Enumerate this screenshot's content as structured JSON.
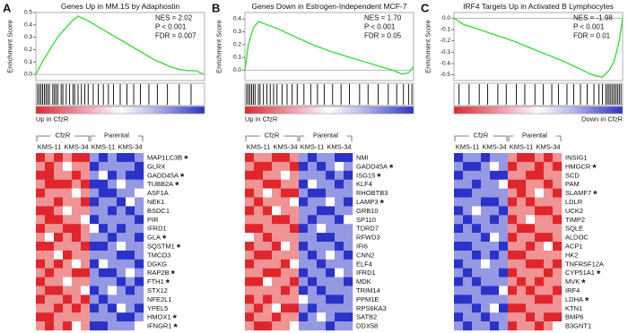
{
  "chart_data": [
    {
      "type": "gsea",
      "panel": "A",
      "title": "Genes Up in MM.1S by Adaphostin",
      "ylabel": "Enrichment Score",
      "annotations": [
        "NES = 2.02",
        "P < 0.001",
        "FDR = 0.007"
      ],
      "xlim": [
        0,
        100
      ],
      "ylim": [
        -0.05,
        0.5
      ],
      "yticks": [
        {
          "value": 0,
          "label": "0.0"
        },
        0.1,
        0.2,
        0.3,
        0.4,
        0.5
      ],
      "x": [
        0,
        3,
        6,
        10,
        14,
        18,
        22,
        25,
        30,
        35,
        40,
        45,
        50,
        55,
        60,
        65,
        70,
        75,
        80,
        85,
        90,
        95,
        98,
        100
      ],
      "values": [
        0,
        0.08,
        0.15,
        0.24,
        0.32,
        0.38,
        0.44,
        0.47,
        0.44,
        0.4,
        0.36,
        0.32,
        0.28,
        0.24,
        0.2,
        0.16,
        0.12,
        0.09,
        0.06,
        0.04,
        0.03,
        0.03,
        0.01,
        0
      ],
      "color": "#3ddc3d",
      "hits": [
        1,
        2,
        3,
        4,
        5,
        6,
        7,
        8,
        10,
        11,
        12,
        13,
        15,
        16,
        18,
        20,
        22,
        23,
        25,
        27,
        29,
        31,
        34,
        37,
        40,
        43,
        46,
        50,
        54,
        58,
        62,
        67,
        72,
        78,
        85,
        92
      ],
      "xlabel": "Up in CfzR",
      "xlabel_side": "left",
      "groups": [
        "CfzR",
        "Parental"
      ],
      "subgroups": [
        "KMS-11",
        "KMS-34",
        "KMS-11",
        "KMS-34"
      ],
      "zlim": [
        -2,
        2
      ],
      "colorscale": [
        "#2a32c8",
        "#ffffff",
        "#e0262a"
      ],
      "genes": [
        "MAP1LC3B",
        "GLRX",
        "GADD45A",
        "TUBB2A",
        "ASF1A",
        "NEK1",
        "BSDC1",
        "PIR",
        "IFRD1",
        "GLA",
        "SQSTM1",
        "TMCO3",
        "DGKG",
        "RAP2B",
        "FTH1",
        "STX12",
        "NFE2L1",
        "YPEL5",
        "HMOX1",
        "IFNGR1"
      ],
      "star": "*",
      "star_color": "#e0443c",
      "starred": [
        0,
        2,
        3,
        9,
        10,
        13,
        14,
        18,
        19
      ],
      "highlighted_genes": [],
      "highlight_color": "#2db82d",
      "matrix": [
        [
          2,
          1,
          2,
          1,
          2,
          2,
          -1,
          -2,
          -1,
          -2,
          -2,
          -1
        ],
        [
          1,
          2,
          1,
          0,
          1,
          1,
          -2,
          -1,
          -1,
          -1,
          -1,
          -2
        ],
        [
          2,
          2,
          1,
          1,
          2,
          1,
          -1,
          0,
          -2,
          -1,
          -2,
          -2
        ],
        [
          1,
          2,
          2,
          2,
          1,
          2,
          -2,
          -2,
          -1,
          0,
          -1,
          -1
        ],
        [
          2,
          1,
          1,
          1,
          0,
          1,
          -1,
          -2,
          -2,
          -1,
          -1,
          0
        ],
        [
          1,
          1,
          2,
          1,
          1,
          2,
          -2,
          -1,
          -1,
          -2,
          0,
          -1
        ],
        [
          2,
          2,
          1,
          0,
          1,
          1,
          -1,
          -1,
          -2,
          -1,
          -2,
          -1
        ],
        [
          1,
          2,
          2,
          1,
          1,
          0,
          -2,
          -1,
          -1,
          -1,
          -1,
          -2
        ],
        [
          2,
          1,
          1,
          2,
          2,
          1,
          0,
          -2,
          -1,
          -2,
          -1,
          -1
        ],
        [
          1,
          0,
          2,
          1,
          2,
          1,
          -1,
          -1,
          -2,
          -1,
          -1,
          -2
        ],
        [
          2,
          2,
          1,
          1,
          1,
          2,
          -2,
          -2,
          -1,
          0,
          -1,
          -1
        ],
        [
          1,
          1,
          0,
          2,
          1,
          1,
          -1,
          -1,
          -1,
          -2,
          -2,
          -1
        ],
        [
          2,
          1,
          2,
          1,
          0,
          1,
          -2,
          0,
          -1,
          -1,
          -1,
          -2
        ],
        [
          1,
          2,
          1,
          1,
          2,
          2,
          -1,
          -2,
          -2,
          -1,
          0,
          -1
        ],
        [
          2,
          1,
          1,
          0,
          1,
          1,
          -1,
          -1,
          -1,
          -2,
          -1,
          -2
        ],
        [
          1,
          2,
          2,
          1,
          1,
          0,
          -2,
          -1,
          0,
          -1,
          -2,
          -1
        ],
        [
          2,
          1,
          1,
          2,
          1,
          2,
          -1,
          -2,
          -1,
          -1,
          -1,
          -1
        ],
        [
          1,
          1,
          2,
          1,
          2,
          1,
          -2,
          -1,
          -2,
          0,
          -1,
          -2
        ],
        [
          2,
          2,
          1,
          1,
          1,
          1,
          -1,
          -1,
          -1,
          -2,
          -2,
          -1
        ],
        [
          1,
          2,
          1,
          2,
          0,
          1,
          -2,
          -2,
          -1,
          -1,
          -1,
          0
        ]
      ]
    },
    {
      "type": "gsea",
      "panel": "B",
      "title": "Genes Down in Estrogen-Independent MCF-7",
      "ylabel": "Enrichment Score",
      "annotations": [
        "NES = 1.70",
        "P < 0.001",
        "FDR = 0.05"
      ],
      "xlim": [
        0,
        100
      ],
      "ylim": [
        -0.08,
        0.45
      ],
      "yticks": [
        {
          "value": 0,
          "label": "0.0"
        },
        0.1,
        0.2,
        0.3,
        0.4
      ],
      "x": [
        0,
        2,
        5,
        8,
        12,
        20,
        30,
        40,
        50,
        60,
        70,
        80,
        88,
        93,
        97,
        100
      ],
      "values": [
        0,
        0.2,
        0.33,
        0.38,
        0.36,
        0.32,
        0.26,
        0.2,
        0.15,
        0.11,
        0.07,
        0.03,
        0,
        -0.03,
        -0.02,
        0.03
      ],
      "color": "#3ddc3d",
      "hits": [
        1,
        2,
        3,
        4,
        5,
        6,
        8,
        9,
        11,
        13,
        15,
        17,
        19,
        22,
        25,
        28,
        31,
        35,
        39,
        43,
        47,
        52,
        57,
        62,
        68,
        73,
        79,
        85,
        90,
        94,
        97,
        99
      ],
      "xlabel": "Up in CfzR",
      "xlabel_side": "left",
      "groups": [
        "CfzR",
        "Parental"
      ],
      "subgroups": [
        "KMS-11",
        "KMS-34",
        "KMS-11",
        "KMS-34"
      ],
      "zlim": [
        -2,
        2
      ],
      "colorscale": [
        "#2a32c8",
        "#ffffff",
        "#e0262a"
      ],
      "genes": [
        "NMI",
        "GADD45A",
        "ISG15",
        "KLF4",
        "RHOBTB3",
        "LAMP3",
        "GRB10",
        "SP110",
        "TDRD7",
        "RFWD3",
        "IFI6",
        "CNN2",
        "ELF4",
        "IFRD1",
        "MDK",
        "TRIM14",
        "PPM1E",
        "RPS6KA3",
        "SATB2",
        "DDX58"
      ],
      "star": "*",
      "star_color": "#e0443c",
      "starred": [
        1,
        2,
        5
      ],
      "highlighted_genes": [
        3
      ],
      "highlight_color": "#2db82d",
      "matrix": [
        [
          2,
          1,
          1,
          2,
          2,
          1,
          -1,
          -2,
          -1,
          -1,
          -2,
          -2
        ],
        [
          1,
          2,
          2,
          1,
          1,
          2,
          -2,
          -1,
          -2,
          -1,
          0,
          -1
        ],
        [
          2,
          2,
          1,
          1,
          0,
          1,
          -1,
          -1,
          -1,
          -2,
          -1,
          -2
        ],
        [
          1,
          1,
          2,
          2,
          1,
          1,
          -2,
          0,
          -1,
          -1,
          -2,
          -1
        ],
        [
          2,
          1,
          0,
          1,
          2,
          2,
          -1,
          -2,
          -2,
          -1,
          -1,
          -1
        ],
        [
          1,
          2,
          1,
          1,
          1,
          0,
          -2,
          -1,
          -1,
          0,
          -1,
          -2
        ],
        [
          2,
          1,
          2,
          0,
          1,
          1,
          -1,
          -1,
          -2,
          -2,
          -1,
          -1
        ],
        [
          1,
          1,
          1,
          2,
          2,
          1,
          -1,
          -2,
          -1,
          -1,
          -2,
          0
        ],
        [
          2,
          2,
          1,
          1,
          1,
          2,
          -2,
          -1,
          0,
          -1,
          -1,
          -1
        ],
        [
          0,
          1,
          2,
          1,
          1,
          1,
          -1,
          -1,
          -2,
          -2,
          -1,
          -1
        ],
        [
          2,
          1,
          1,
          2,
          0,
          1,
          -2,
          -1,
          -1,
          -1,
          -2,
          -1
        ],
        [
          1,
          2,
          2,
          1,
          1,
          1,
          -1,
          -2,
          -1,
          0,
          -1,
          -2
        ],
        [
          2,
          1,
          1,
          1,
          2,
          0,
          -1,
          -1,
          -2,
          -1,
          -1,
          -1
        ],
        [
          1,
          1,
          2,
          2,
          1,
          1,
          -2,
          -1,
          -1,
          -2,
          0,
          -1
        ],
        [
          2,
          2,
          0,
          1,
          1,
          2,
          -1,
          -2,
          -1,
          -1,
          -1,
          -2
        ],
        [
          1,
          1,
          1,
          1,
          2,
          1,
          -2,
          -1,
          -2,
          -1,
          -1,
          -1
        ],
        [
          2,
          1,
          2,
          1,
          1,
          1,
          0,
          -1,
          -1,
          -2,
          -2,
          -1
        ],
        [
          1,
          2,
          1,
          0,
          2,
          2,
          -1,
          -2,
          -1,
          -1,
          -1,
          -1
        ],
        [
          2,
          1,
          1,
          2,
          1,
          1,
          -2,
          -1,
          0,
          -1,
          -2,
          -2
        ],
        [
          1,
          2,
          2,
          1,
          1,
          0,
          -1,
          -1,
          -1,
          -2,
          -1,
          -1
        ]
      ]
    },
    {
      "type": "gsea",
      "panel": "C",
      "title": "IRF4 Targets Up in Activated B Lymphocytes",
      "ylabel": "Enrichment Score",
      "annotations": [
        "NES = -1.98",
        "P < 0.001",
        "FDR = 0.01"
      ],
      "xlim": [
        0,
        100
      ],
      "ylim": [
        -0.55,
        0.05
      ],
      "yticks": [
        {
          "value": 0,
          "label": "0.0"
        },
        -0.1,
        -0.2,
        -0.3,
        -0.4,
        -0.5
      ],
      "x": [
        0,
        5,
        15,
        25,
        35,
        45,
        55,
        65,
        75,
        82,
        88,
        92,
        95,
        98,
        100
      ],
      "values": [
        0,
        -0.05,
        -0.1,
        -0.15,
        -0.2,
        -0.26,
        -0.32,
        -0.38,
        -0.45,
        -0.5,
        -0.52,
        -0.46,
        -0.38,
        -0.2,
        0
      ],
      "color": "#3ddc3d",
      "hits": [
        3,
        9,
        15,
        20,
        26,
        31,
        37,
        42,
        48,
        53,
        58,
        62,
        67,
        71,
        75,
        79,
        83,
        86,
        88,
        90,
        91,
        92,
        93,
        94,
        95,
        96,
        97,
        98,
        99
      ],
      "xlabel": "Down in CfzR",
      "xlabel_side": "right",
      "groups": [
        "CfzR",
        "Parental"
      ],
      "subgroups": [
        "KMS-11",
        "KMS-34",
        "KMS-11",
        "KMS-34"
      ],
      "zlim": [
        -2,
        2
      ],
      "colorscale": [
        "#2a32c8",
        "#ffffff",
        "#e0262a"
      ],
      "genes": [
        "INSIG1",
        "HMGCR",
        "SCD",
        "PAM",
        "SLAMF7",
        "LDLR",
        "UCK2",
        "TIMP2",
        "SQLE",
        "ALDOC",
        "ACP1",
        "HK2",
        "TNFRSF12A",
        "CYP51A1",
        "MVK",
        "IRF4",
        "LDHA",
        "KTN1",
        "BMP6",
        "B3GNT1"
      ],
      "star": "*",
      "star_color": "#2a32d8",
      "starred": [
        1,
        4,
        13,
        14,
        16
      ],
      "highlighted_genes": [],
      "highlight_color": "#2db82d",
      "matrix": [
        [
          -2,
          -1,
          -1,
          -2,
          -1,
          -1,
          1,
          2,
          2,
          1,
          2,
          1
        ],
        [
          -1,
          -2,
          -2,
          -1,
          0,
          -1,
          2,
          1,
          1,
          2,
          1,
          2
        ],
        [
          -2,
          -1,
          -1,
          -1,
          -2,
          -2,
          1,
          1,
          2,
          2,
          1,
          1
        ],
        [
          -1,
          -1,
          -2,
          -1,
          -1,
          0,
          2,
          2,
          1,
          1,
          2,
          1
        ],
        [
          -2,
          -2,
          -1,
          -1,
          -1,
          -1,
          1,
          2,
          1,
          0,
          1,
          2
        ],
        [
          -1,
          -1,
          -1,
          -2,
          -2,
          -1,
          2,
          1,
          2,
          1,
          1,
          1
        ],
        [
          -2,
          -1,
          0,
          -1,
          -1,
          -2,
          1,
          1,
          1,
          2,
          2,
          1
        ],
        [
          -1,
          -2,
          -1,
          -1,
          -2,
          -1,
          2,
          1,
          0,
          1,
          1,
          2
        ],
        [
          -2,
          -1,
          -2,
          -1,
          -1,
          -1,
          1,
          2,
          2,
          1,
          1,
          1
        ],
        [
          -1,
          -1,
          -1,
          -2,
          0,
          -1,
          2,
          1,
          1,
          2,
          2,
          1
        ],
        [
          -2,
          -2,
          -1,
          -1,
          -1,
          -2,
          1,
          1,
          2,
          1,
          0,
          2
        ],
        [
          -1,
          -1,
          -2,
          -1,
          -2,
          -1,
          2,
          2,
          1,
          1,
          1,
          1
        ],
        [
          -2,
          -1,
          -1,
          0,
          -1,
          -1,
          1,
          1,
          2,
          2,
          1,
          2
        ],
        [
          -1,
          -2,
          -1,
          -1,
          -1,
          -2,
          2,
          1,
          1,
          1,
          2,
          1
        ],
        [
          -2,
          -1,
          -2,
          -1,
          -1,
          -1,
          1,
          2,
          1,
          2,
          1,
          1
        ],
        [
          -1,
          -1,
          -1,
          -2,
          -2,
          0,
          2,
          1,
          2,
          1,
          1,
          2
        ],
        [
          -2,
          -2,
          -1,
          -1,
          -1,
          -1,
          1,
          1,
          1,
          2,
          2,
          1
        ],
        [
          -1,
          -1,
          -2,
          -1,
          0,
          -2,
          2,
          2,
          1,
          1,
          1,
          1
        ],
        [
          -2,
          -1,
          -1,
          -2,
          -1,
          -1,
          1,
          1,
          2,
          1,
          2,
          2
        ],
        [
          -1,
          -2,
          -1,
          -1,
          -2,
          -1,
          2,
          1,
          1,
          2,
          1,
          0
        ]
      ]
    }
  ]
}
